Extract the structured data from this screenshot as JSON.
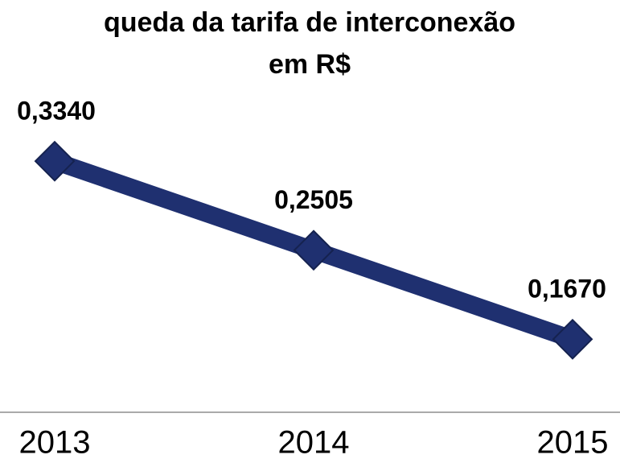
{
  "chart_data": {
    "type": "line",
    "title": "queda da tarifa de interconexão",
    "subtitle": "em R$",
    "categories": [
      "2013",
      "2014",
      "2015"
    ],
    "series": [
      {
        "name": null,
        "color": "#1f3070",
        "values": [
          0.334,
          0.2505,
          0.167
        ],
        "value_labels": [
          "0,3340",
          "0,2505",
          "0,1670"
        ]
      }
    ],
    "ylim": [
      0.1,
      0.35
    ]
  }
}
